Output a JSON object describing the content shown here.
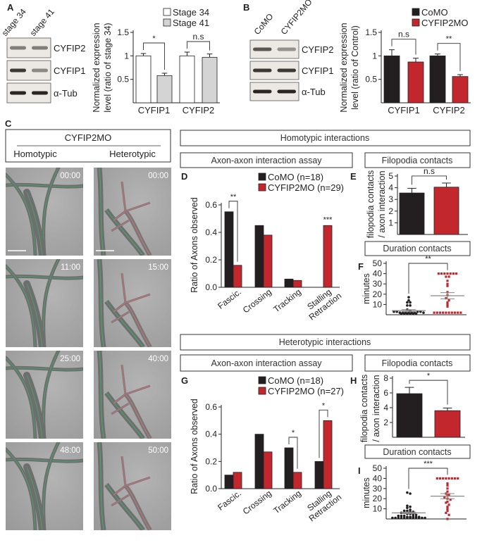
{
  "panel_letters": {
    "A": "A",
    "B": "B",
    "C": "C",
    "D": "D",
    "E": "E",
    "F": "F",
    "G": "G",
    "H": "H",
    "I": "I"
  },
  "blot_A": {
    "lanes": [
      "stage 34",
      "stage 41"
    ],
    "bands": [
      "CYFIP2",
      "CYFIP1",
      "α-Tub"
    ]
  },
  "blot_B": {
    "lanes": [
      "CoMO",
      "CYFIP2MO"
    ],
    "bands": [
      "CYFIP2",
      "CYFIP1",
      "α-Tub"
    ]
  },
  "panel_C": {
    "title": "CYFIP2MO",
    "columns": [
      "Homotypic",
      "Heterotypic"
    ],
    "timestamps_homotypic": [
      "00:00",
      "11:00",
      "25:00",
      "48:00"
    ],
    "timestamps_heterotypic": [
      "00:00",
      "15:00",
      "40:00",
      "50:00"
    ]
  },
  "section_boxes": {
    "homotypic": "Homotypic interactions",
    "heterotypic": "Heterotypic interactions",
    "axon_assay": "Axon-axon interaction assay",
    "filopodia": "Filopodia contacts",
    "duration": "Duration contacts"
  },
  "colors": {
    "como": "#231f20",
    "cyfip2mo": "#c1272d",
    "stage34": "#ffffff",
    "stage41": "#d4d4d4"
  },
  "chart_data": [
    {
      "id": "A",
      "type": "bar",
      "title": "",
      "categories": [
        "CYFIP1",
        "CYFIP2"
      ],
      "series": [
        {
          "name": "Stage 34",
          "values": [
            1.0,
            1.0
          ],
          "errors": [
            0.05,
            0.08
          ]
        },
        {
          "name": "Stage 41",
          "values": [
            0.58,
            0.97
          ],
          "errors": [
            0.05,
            0.07
          ]
        }
      ],
      "ylabel": [
        "Normalized expression",
        "level (ratio of stage 34)"
      ],
      "ylim": [
        0,
        1.5
      ],
      "yticks": [
        0.5,
        1,
        1.5
      ],
      "legend": "top-right",
      "significance": [
        {
          "category": "CYFIP1",
          "label": "*"
        },
        {
          "category": "CYFIP2",
          "label": "n.s"
        }
      ]
    },
    {
      "id": "B",
      "type": "bar",
      "title": "",
      "categories": [
        "CYFIP1",
        "CYFIP2"
      ],
      "series": [
        {
          "name": "CoMO",
          "values": [
            1.0,
            1.0
          ],
          "errors": [
            0.13,
            0.04
          ]
        },
        {
          "name": "CYFIP2MO",
          "values": [
            0.87,
            0.56
          ],
          "errors": [
            0.08,
            0.04
          ]
        }
      ],
      "ylabel": [
        "Normalized expression",
        "level (ratio of Control)"
      ],
      "ylim": [
        0,
        1.5
      ],
      "yticks": [
        0.5,
        1,
        1.5
      ],
      "legend": "top-right",
      "significance": [
        {
          "category": "CYFIP1",
          "label": "n.s"
        },
        {
          "category": "CYFIP2",
          "label": "**"
        }
      ]
    },
    {
      "id": "D",
      "type": "bar",
      "title": "Axon-axon interaction assay (Homotypic)",
      "categories": [
        "Fascic.",
        "Crossing",
        "Tracking",
        "Stalling Retraction"
      ],
      "series": [
        {
          "name": "CoMO (n=18)",
          "values": [
            0.55,
            0.45,
            0.06,
            0.0
          ]
        },
        {
          "name": "CYFIP2MO (n=29)",
          "values": [
            0.16,
            0.38,
            0.05,
            0.45
          ]
        }
      ],
      "ylabel": [
        "Ratio of Axons observed"
      ],
      "ylim": [
        0,
        0.6
      ],
      "yticks": [
        0.0,
        0.2,
        0.4,
        0.6
      ],
      "tick_decimals": 1,
      "legend": "top",
      "significance": [
        {
          "category": "Fascic.",
          "label": "**"
        },
        {
          "category": "Stalling Retraction",
          "label": "***",
          "bracket": false
        }
      ]
    },
    {
      "id": "E",
      "type": "bar",
      "title": "Filopodia contacts (Homotypic)",
      "categories": [
        ""
      ],
      "series": [
        {
          "name": "CoMO",
          "values": [
            3.55
          ],
          "errors": [
            0.4
          ]
        },
        {
          "name": "CYFIP2MO",
          "values": [
            4.05
          ],
          "errors": [
            0.35
          ]
        }
      ],
      "ylabel": [
        "filopodia contacts",
        "/ axon interaction"
      ],
      "ylim": [
        0,
        5
      ],
      "yticks": [
        1,
        2,
        3,
        4,
        5
      ],
      "significance": [
        {
          "category": "",
          "label": "n.s"
        }
      ]
    },
    {
      "id": "F",
      "type": "scatter",
      "title": "Duration contacts (Homotypic)",
      "ylabel": [
        "minutes"
      ],
      "ylim": [
        0,
        50
      ],
      "yticks": [
        10,
        20,
        30,
        40,
        50
      ],
      "groups": [
        {
          "name": "CoMO",
          "mean": 4,
          "sem": 1,
          "values": [
            17,
            14,
            12,
            12,
            9,
            9,
            5,
            4,
            3,
            3,
            2,
            2,
            2,
            2,
            1,
            1,
            1,
            1,
            1,
            1,
            2,
            2,
            3,
            3,
            2
          ]
        },
        {
          "name": "CYFIP2MO",
          "mean": 18.5,
          "sem": 3,
          "values": [
            40,
            40,
            40,
            40,
            40,
            40,
            40,
            37,
            37,
            33,
            30,
            28,
            22,
            19,
            16,
            14,
            12,
            10,
            8,
            2,
            2,
            2,
            2,
            2,
            2,
            2,
            2,
            2,
            2
          ]
        }
      ],
      "significance": [
        {
          "label": "**"
        }
      ]
    },
    {
      "id": "G",
      "type": "bar",
      "title": "Axon-axon interaction assay (Heterotypic)",
      "categories": [
        "Fascic.",
        "Crossing",
        "Tracking",
        "Stalling Retraction"
      ],
      "series": [
        {
          "name": "CoMO (n=18)",
          "values": [
            0.1,
            0.4,
            0.3,
            0.2
          ]
        },
        {
          "name": "CYFIP2MO (n=27)",
          "values": [
            0.12,
            0.27,
            0.12,
            0.5
          ]
        }
      ],
      "ylabel": [
        "Ratio of Axons observed"
      ],
      "ylim": [
        0,
        0.6
      ],
      "yticks": [
        0.0,
        0.2,
        0.4,
        0.6
      ],
      "tick_decimals": 1,
      "legend": "top",
      "significance": [
        {
          "category": "Tracking",
          "label": "*"
        },
        {
          "category": "Stalling Retraction",
          "label": "*"
        }
      ]
    },
    {
      "id": "H",
      "type": "bar",
      "title": "Filopodia contacts (Heterotypic)",
      "categories": [
        ""
      ],
      "series": [
        {
          "name": "CoMO",
          "values": [
            5.9
          ],
          "errors": [
            0.85
          ]
        },
        {
          "name": "CYFIP2MO",
          "values": [
            3.6
          ],
          "errors": [
            0.35
          ]
        }
      ],
      "ylabel": [
        "filopodia contacts",
        "/ axon interaction"
      ],
      "ylim": [
        0,
        8
      ],
      "yticks": [
        2,
        4,
        6,
        8
      ],
      "significance": [
        {
          "category": "",
          "label": "*"
        }
      ]
    },
    {
      "id": "I",
      "type": "scatter",
      "title": "Duration contacts (Heterotypic)",
      "ylabel": [
        "minutes"
      ],
      "ylim": [
        0,
        50
      ],
      "yticks": [
        10,
        20,
        30,
        40,
        50
      ],
      "groups": [
        {
          "name": "CoMO",
          "mean": 6,
          "sem": 0.8,
          "values": [
            26,
            25,
            13,
            12,
            11,
            9,
            8,
            8,
            7,
            7,
            6,
            6,
            5,
            5,
            4,
            4,
            3,
            3,
            3,
            2,
            2,
            2,
            2,
            2,
            1,
            1,
            1,
            1,
            1,
            1,
            1,
            1,
            1,
            1,
            1,
            1
          ]
        },
        {
          "name": "CYFIP2MO",
          "mean": 22.5,
          "sem": 2.5,
          "values": [
            40,
            40,
            40,
            40,
            40,
            40,
            40,
            40,
            35,
            33,
            30,
            27,
            25,
            24,
            23,
            21,
            20,
            19,
            17,
            16,
            14,
            12,
            10,
            8,
            6,
            4,
            0
          ]
        }
      ],
      "significance": [
        {
          "label": "***"
        }
      ]
    }
  ]
}
